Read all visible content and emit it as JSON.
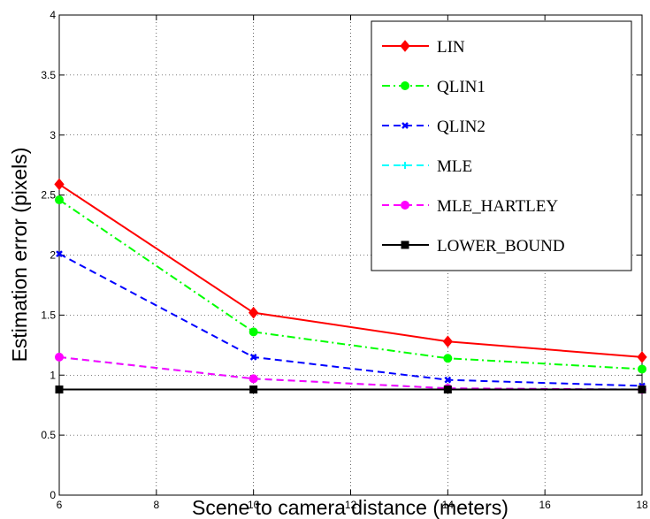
{
  "chart_data": {
    "type": "line",
    "xlabel": "Scene to camera distance (meters)",
    "ylabel": "Estimation error (pixels)",
    "xlim": [
      6,
      18
    ],
    "ylim": [
      0,
      4
    ],
    "xticks": [
      "6",
      "8",
      "10",
      "12",
      "14",
      "16",
      "18"
    ],
    "yticks": [
      "0",
      "0.5",
      "1",
      "1.5",
      "2",
      "2.5",
      "3",
      "3.5",
      "4"
    ],
    "grid": true,
    "legend_position": "top-right",
    "x": [
      6,
      10,
      14,
      18
    ],
    "series": [
      {
        "name": "LIN",
        "values": [
          2.59,
          1.52,
          1.28,
          1.15
        ],
        "color": "#ff0000",
        "dash": "solid",
        "marker": "diamond"
      },
      {
        "name": "QLIN1",
        "values": [
          2.46,
          1.36,
          1.14,
          1.05
        ],
        "color": "#00ff00",
        "dash": "dashdot",
        "marker": "circle"
      },
      {
        "name": "QLIN2",
        "values": [
          2.01,
          1.15,
          0.96,
          0.91
        ],
        "color": "#0000ff",
        "dash": "dashed",
        "marker": "x"
      },
      {
        "name": "MLE",
        "values": [
          1.15,
          0.97,
          0.89,
          0.88
        ],
        "color": "#00ffff",
        "dash": "dashed",
        "marker": "plus"
      },
      {
        "name": "MLE_HARTLEY",
        "values": [
          1.15,
          0.97,
          0.89,
          0.88
        ],
        "color": "#ff00ff",
        "dash": "dashed",
        "marker": "circle"
      },
      {
        "name": "LOWER_BOUND",
        "values": [
          0.88,
          0.88,
          0.88,
          0.88
        ],
        "color": "#000000",
        "dash": "solid",
        "marker": "square"
      }
    ]
  }
}
